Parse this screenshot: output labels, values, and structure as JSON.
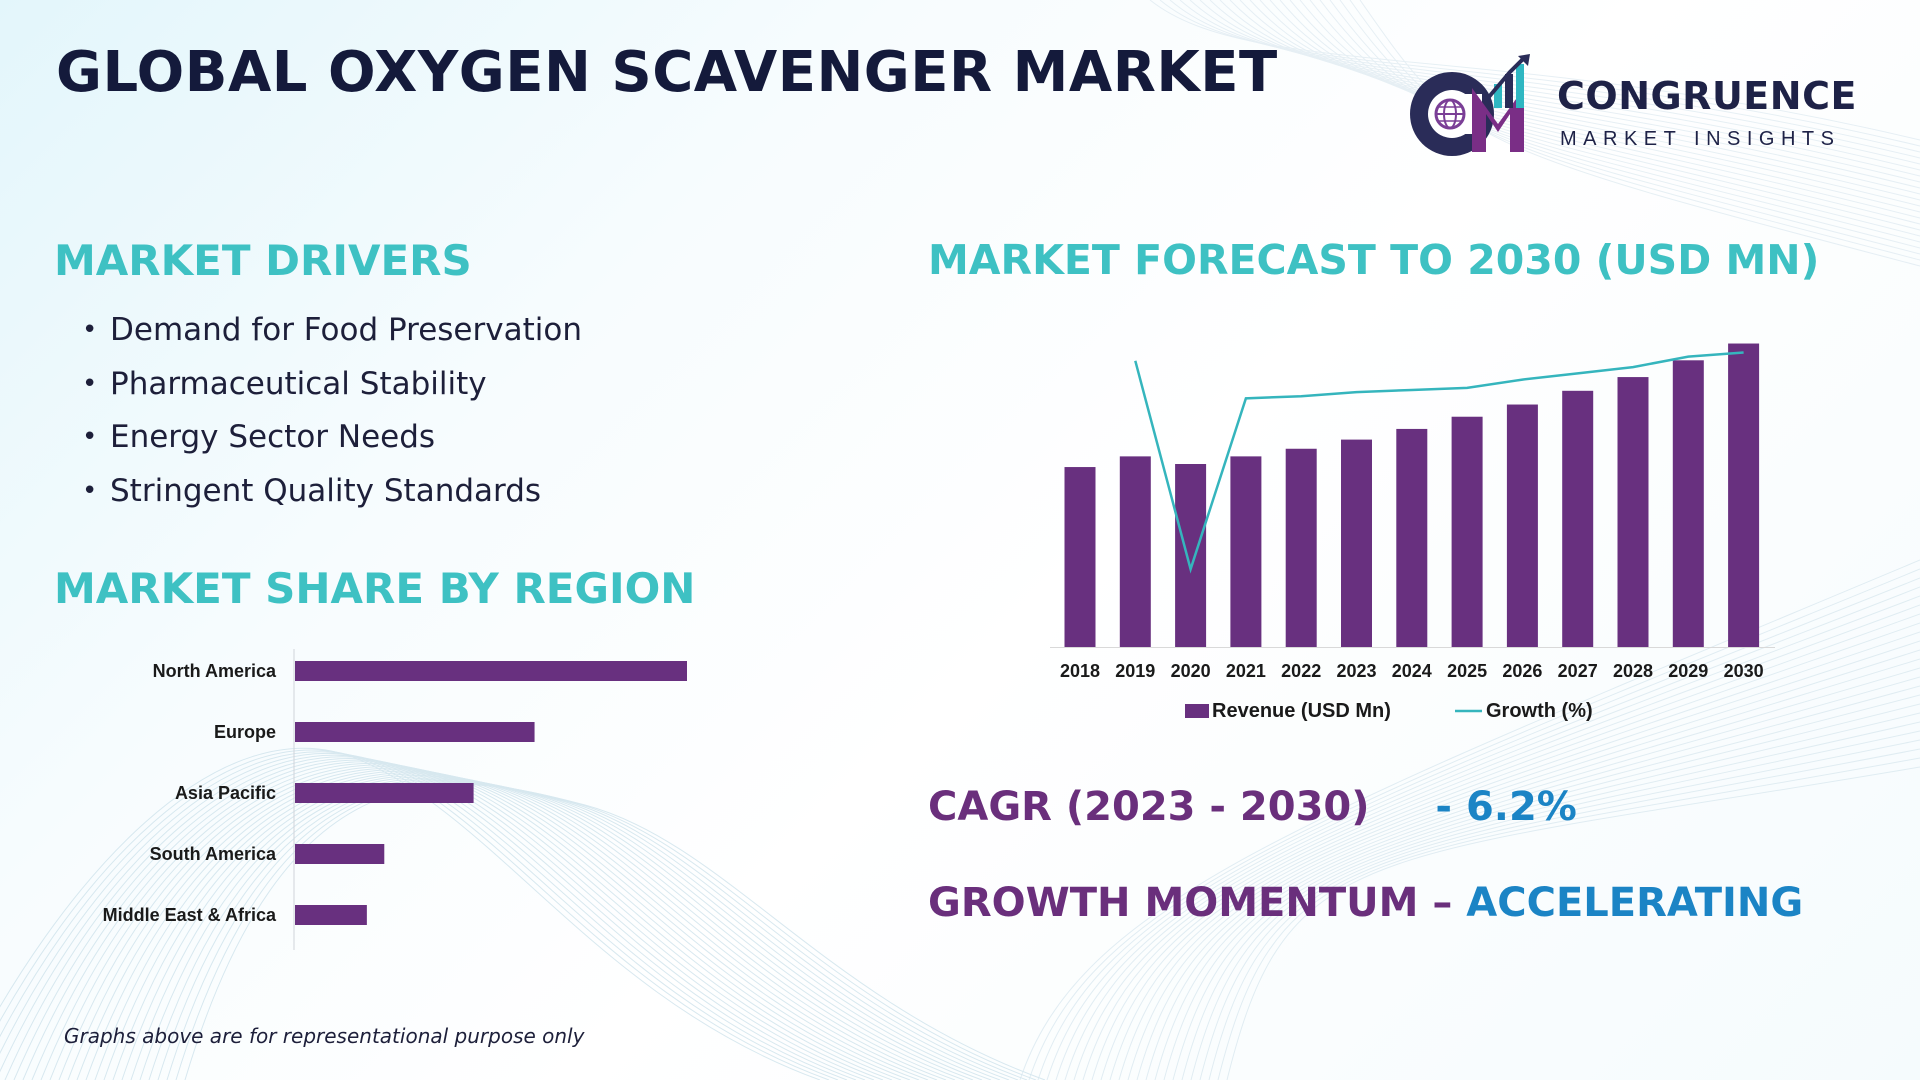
{
  "title": "GLOBAL OXYGEN SCAVENGER MARKET",
  "logo": {
    "initials": "CM",
    "name": "CONGRUENCE",
    "tagline": "MARKET INSIGHTS"
  },
  "colors": {
    "heading_teal": "#3ec1c3",
    "bar_purple": "#68307f",
    "line_teal": "#35b5bd",
    "accent_purple": "#6a2f7c",
    "accent_blue": "#1b84c5",
    "title_navy": "#141a3b"
  },
  "drivers": {
    "heading": "MARKET DRIVERS",
    "items": [
      "Demand for Food Preservation",
      "Pharmaceutical  Stability",
      "Energy Sector Needs",
      "Stringent Quality Standards"
    ]
  },
  "region": {
    "heading": "MARKET SHARE BY REGION"
  },
  "forecast": {
    "heading": "MARKET FORECAST TO 2030 (USD MN)"
  },
  "cagr": {
    "label": "CAGR (2023 - 2030)",
    "value": "- 6.2%"
  },
  "momentum": {
    "label": "GROWTH MOMENTUM – ",
    "value": "ACCELERATING"
  },
  "footnote": "Graphs above are for representational purpose only",
  "chart_data": [
    {
      "type": "bar",
      "orientation": "horizontal",
      "title": "MARKET SHARE BY REGION",
      "categories": [
        "North America",
        "Europe",
        "Asia Pacific",
        "South America",
        "Middle East & Africa"
      ],
      "values": [
        36,
        22,
        16.4,
        8.2,
        6.6
      ],
      "xlim": [
        0,
        40
      ],
      "grid": false,
      "xlabel": "",
      "ylabel": ""
    },
    {
      "type": "bar",
      "title": "MARKET FORECAST TO 2030 (USD MN)",
      "categories": [
        "2018",
        "2019",
        "2020",
        "2021",
        "2022",
        "2023",
        "2024",
        "2025",
        "2026",
        "2027",
        "2028",
        "2029",
        "2030"
      ],
      "series": [
        {
          "name": "Revenue (USD Mn)",
          "type": "bar",
          "values": [
            59,
            62.5,
            60,
            62.5,
            65,
            68,
            71.5,
            75.5,
            79.5,
            84,
            88.5,
            94,
            99.5
          ]
        },
        {
          "name": "Growth (%)",
          "type": "line",
          "values": [
            null,
            6,
            -4,
            4.2,
            4.3,
            4.5,
            4.6,
            4.7,
            5.1,
            5.4,
            5.7,
            6.2,
            6.4
          ],
          "ylim": [
            -5,
            7
          ]
        }
      ],
      "ylim": [
        0,
        100
      ],
      "legend": "bottom",
      "grid": false
    }
  ]
}
